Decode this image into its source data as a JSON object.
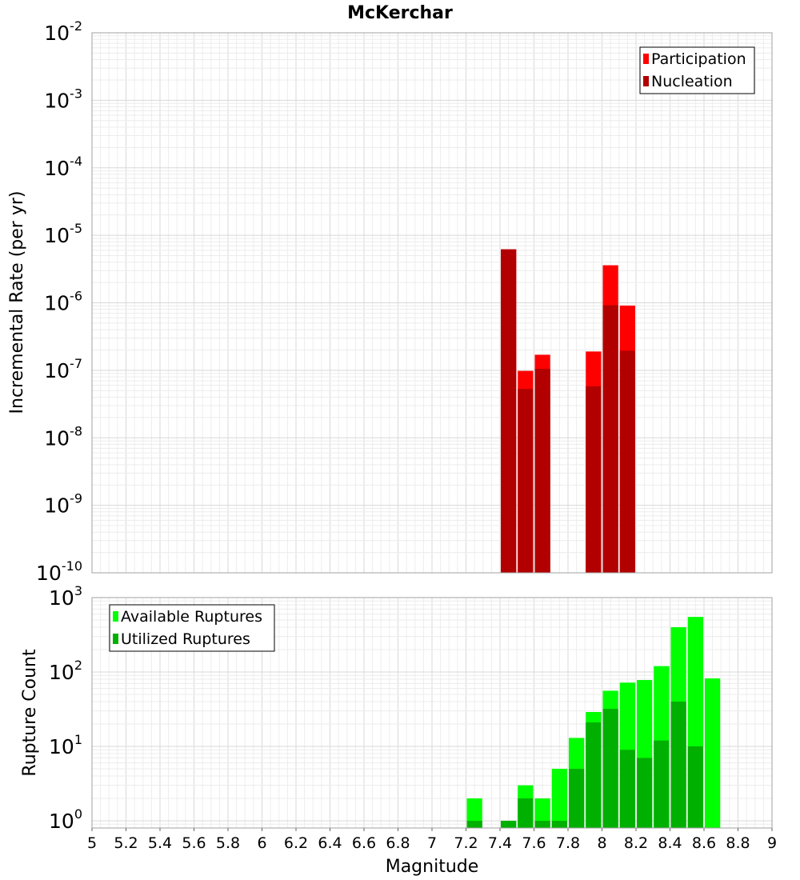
{
  "chart_data": [
    {
      "type": "bar",
      "title": "McKerchar",
      "xlabel": "",
      "ylabel": "Incremental Rate (per yr)",
      "yscale": "log",
      "ylim": [
        1e-10,
        0.01
      ],
      "xlim": [
        5,
        9
      ],
      "y_tick_exponents": [
        -10,
        -9,
        -8,
        -7,
        -6,
        -5,
        -4,
        -3,
        -2
      ],
      "legend_position": "top-right",
      "series": [
        {
          "name": "Participation",
          "color": "#ff0000",
          "x": [
            7.45,
            7.55,
            7.65,
            7.95,
            8.05,
            8.15
          ],
          "values": [
            6.2e-06,
            9.8e-08,
            1.7e-07,
            1.9e-07,
            3.6e-06,
            9.1e-07
          ]
        },
        {
          "name": "Nucleation",
          "color": "#b20000",
          "x": [
            7.45,
            7.55,
            7.65,
            7.95,
            8.05,
            8.15
          ],
          "values": [
            6.2e-06,
            5.3e-08,
            1.05e-07,
            5.8e-08,
            9.2e-07,
            1.95e-07
          ]
        }
      ]
    },
    {
      "type": "bar",
      "title": "",
      "xlabel": "Magnitude",
      "ylabel": "Rupture Count",
      "yscale": "log",
      "ylim": [
        0.8,
        1000
      ],
      "xlim": [
        5,
        9
      ],
      "y_tick_exponents": [
        0,
        1,
        2,
        3
      ],
      "x_ticks": [
        "5",
        "5.2",
        "5.4",
        "5.6",
        "5.8",
        "6",
        "6.2",
        "6.4",
        "6.6",
        "6.8",
        "7",
        "7.2",
        "7.4",
        "7.6",
        "7.8",
        "8",
        "8.2",
        "8.4",
        "8.6",
        "8.8",
        "9"
      ],
      "legend_position": "top-left",
      "series": [
        {
          "name": "Available Ruptures",
          "color": "#00ff00",
          "x": [
            7.25,
            7.45,
            7.55,
            7.65,
            7.75,
            7.85,
            7.95,
            8.05,
            8.15,
            8.25,
            8.35,
            8.45,
            8.55,
            8.65
          ],
          "values": [
            2,
            1,
            3,
            2,
            5,
            13,
            29,
            56,
            72,
            78,
            120,
            400,
            550,
            82
          ]
        },
        {
          "name": "Utilized Ruptures",
          "color": "#00b000",
          "x": [
            7.25,
            7.45,
            7.55,
            7.65,
            7.75,
            7.85,
            7.95,
            8.05,
            8.15,
            8.25,
            8.35,
            8.45,
            8.55,
            8.65
          ],
          "values": [
            1,
            1,
            2,
            1,
            1,
            5,
            21,
            32,
            9,
            7,
            12,
            40,
            10,
            0
          ]
        }
      ]
    }
  ]
}
